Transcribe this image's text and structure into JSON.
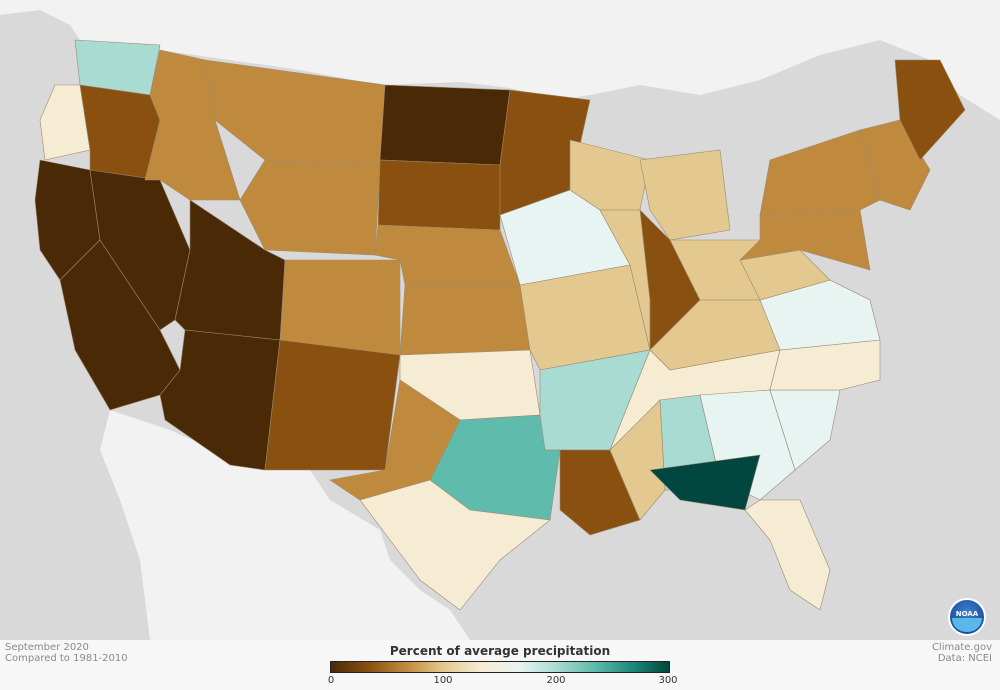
{
  "caption": {
    "period": "September 2020",
    "baseline": "Compared to 1981-2010"
  },
  "credits": {
    "site": "Climate.gov",
    "data_source": "Data: NCEI"
  },
  "logo": {
    "text": "NOAA"
  },
  "legend": {
    "title": "Percent of average precipitation",
    "ticks": [
      "0",
      "100",
      "200",
      "300"
    ],
    "colors": [
      "#4a2a06",
      "#8a5010",
      "#c08a3e",
      "#e3c98f",
      "#f6ecd4",
      "#e7f4f2",
      "#a8dbd2",
      "#5fbcac",
      "#1f8a7c",
      "#01473f"
    ]
  },
  "map": {
    "land_color": "#f2f2f2",
    "ocean_color": "#d9d9d9",
    "regions": [
      {
        "name": "Washington",
        "value": 180
      },
      {
        "name": "Oregon west",
        "value": 140
      },
      {
        "name": "Oregon east",
        "value": 45
      },
      {
        "name": "California north",
        "value": 20
      },
      {
        "name": "California south",
        "value": 5
      },
      {
        "name": "Nevada",
        "value": 15
      },
      {
        "name": "Idaho",
        "value": 70
      },
      {
        "name": "Montana",
        "value": 85
      },
      {
        "name": "Wyoming",
        "value": 75
      },
      {
        "name": "Utah",
        "value": 20
      },
      {
        "name": "Colorado",
        "value": 85
      },
      {
        "name": "Arizona",
        "value": 8
      },
      {
        "name": "New Mexico",
        "value": 45
      },
      {
        "name": "North Dakota",
        "value": 25
      },
      {
        "name": "South Dakota",
        "value": 40
      },
      {
        "name": "Nebraska",
        "value": 60
      },
      {
        "name": "Kansas",
        "value": 80
      },
      {
        "name": "Oklahoma",
        "value": 140
      },
      {
        "name": "Texas central",
        "value": 210
      },
      {
        "name": "Texas west",
        "value": 70
      },
      {
        "name": "Texas south",
        "value": 130
      },
      {
        "name": "Minnesota",
        "value": 50
      },
      {
        "name": "Iowa",
        "value": 160
      },
      {
        "name": "Missouri",
        "value": 95
      },
      {
        "name": "Arkansas",
        "value": 180
      },
      {
        "name": "Louisiana",
        "value": 45
      },
      {
        "name": "Wisconsin",
        "value": 95
      },
      {
        "name": "Illinois",
        "value": 110
      },
      {
        "name": "Michigan",
        "value": 90
      },
      {
        "name": "Indiana",
        "value": 35
      },
      {
        "name": "Ohio",
        "value": 115
      },
      {
        "name": "Kentucky",
        "value": 115
      },
      {
        "name": "Tennessee",
        "value": 125
      },
      {
        "name": "Mississippi",
        "value": 110
      },
      {
        "name": "Alabama",
        "value": 190
      },
      {
        "name": "Georgia",
        "value": 160
      },
      {
        "name": "Florida panhandle",
        "value": 280
      },
      {
        "name": "Florida peninsula",
        "value": 120
      },
      {
        "name": "South Carolina",
        "value": 150
      },
      {
        "name": "North Carolina",
        "value": 130
      },
      {
        "name": "Virginia",
        "value": 170
      },
      {
        "name": "West Virginia",
        "value": 95
      },
      {
        "name": "Pennsylvania",
        "value": 75
      },
      {
        "name": "New York",
        "value": 65
      },
      {
        "name": "New England",
        "value": 70
      },
      {
        "name": "Maine",
        "value": 30
      }
    ]
  }
}
